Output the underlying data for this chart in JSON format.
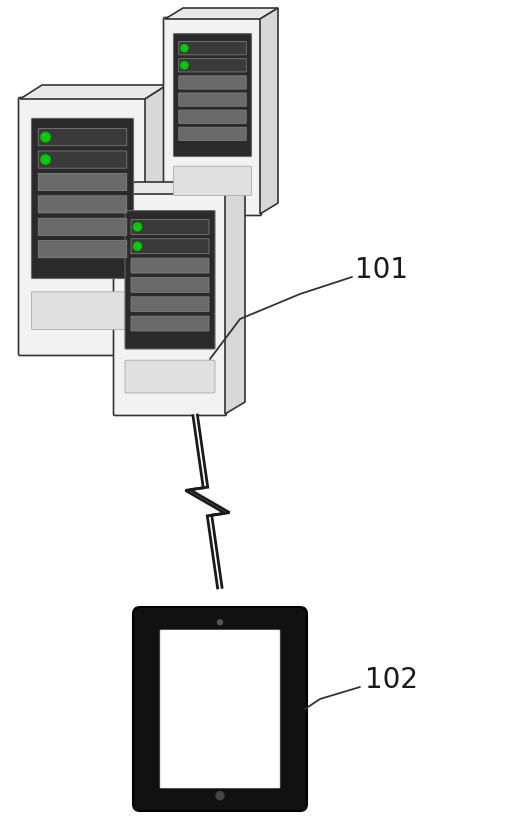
{
  "bg_color": "#ffffff",
  "label_101": "101",
  "label_102": "102",
  "label_fontsize": 20,
  "fig_width": 5.31,
  "fig_height": 8.28,
  "dpi": 100,
  "server_body_color": "#f2f2f2",
  "server_side_color": "#d8d8d8",
  "server_top_color": "#e8e8e8",
  "server_panel_color": "#2a2a2a",
  "server_slot_color": "#555555",
  "server_slot_light_color": "#888888",
  "server_led_color": "#00cc00",
  "tablet_body_color": "#111111",
  "tablet_screen_color": "#ffffff",
  "line_color": "#333333"
}
